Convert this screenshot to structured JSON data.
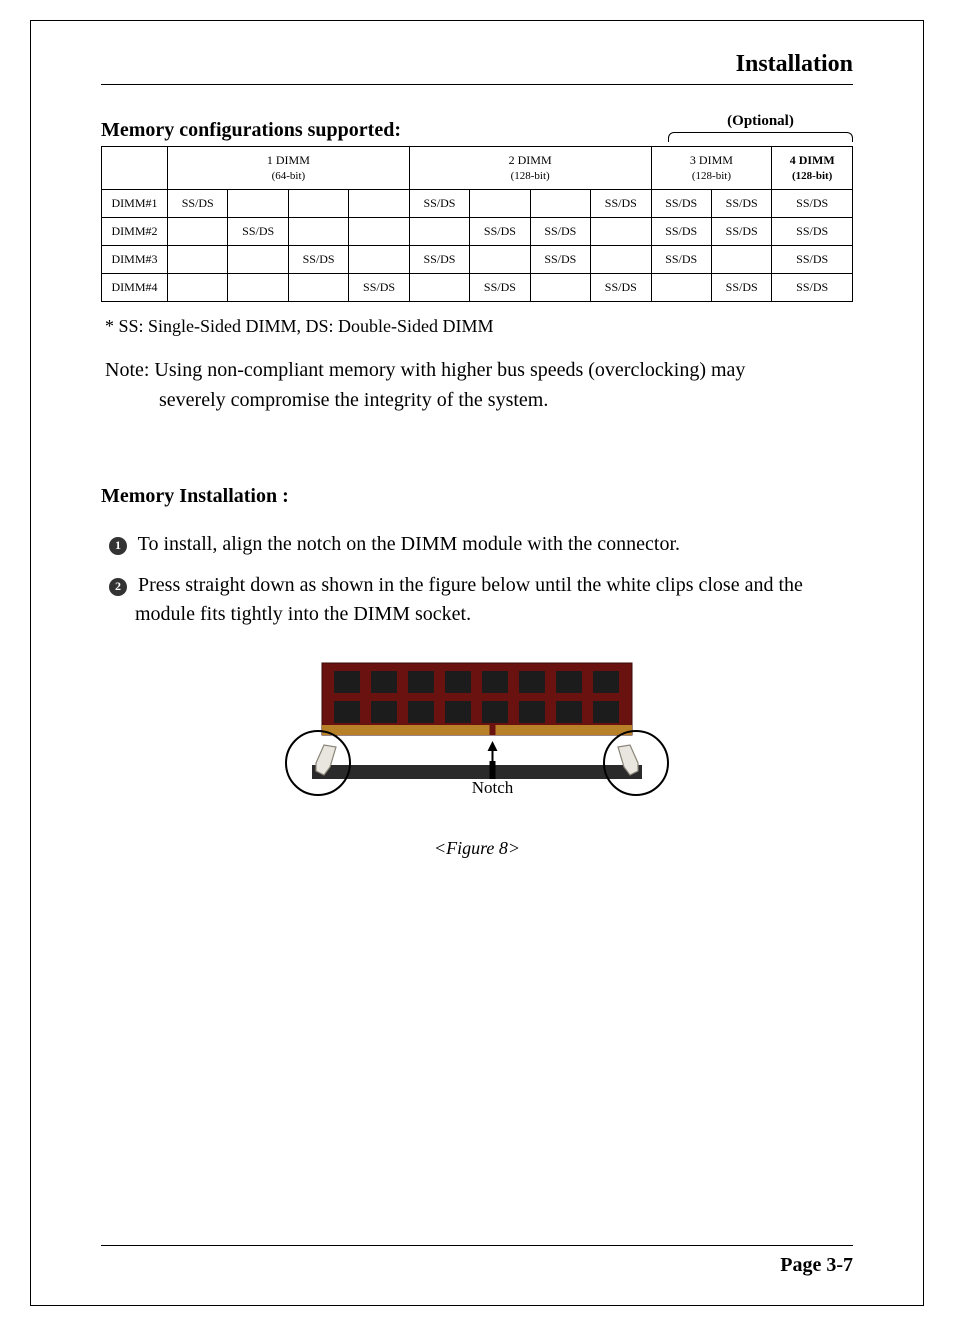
{
  "header": {
    "title": "Installation"
  },
  "subhead": "Memory configurations supported:",
  "optional": "(Optional)",
  "table": {
    "groups": [
      {
        "label_top": "1 DIMM",
        "label_sub": "(64-bit)",
        "bold": false
      },
      {
        "label_top": "2 DIMM",
        "label_sub": "(128-bit)",
        "bold": false
      },
      {
        "label_top": "3 DIMM",
        "label_sub": "(128-bit)",
        "bold": false
      },
      {
        "label_top": "4 DIMM",
        "label_sub": "(128-bit)",
        "bold": true
      }
    ],
    "rows": [
      {
        "label": "DIMM#1",
        "cells": [
          "SS/DS",
          "",
          "",
          "",
          "SS/DS",
          "",
          "",
          "SS/DS",
          "SS/DS",
          "SS/DS",
          "SS/DS"
        ]
      },
      {
        "label": "DIMM#2",
        "cells": [
          "",
          "SS/DS",
          "",
          "",
          "",
          "SS/DS",
          "SS/DS",
          "",
          "SS/DS",
          "SS/DS",
          "SS/DS"
        ]
      },
      {
        "label": "DIMM#3",
        "cells": [
          "",
          "",
          "SS/DS",
          "",
          "SS/DS",
          "",
          "SS/DS",
          "",
          "SS/DS",
          "",
          "SS/DS"
        ]
      },
      {
        "label": "DIMM#4",
        "cells": [
          "",
          "",
          "",
          "SS/DS",
          "",
          "SS/DS",
          "",
          "SS/DS",
          "",
          "SS/DS",
          "SS/DS"
        ]
      }
    ]
  },
  "footnote": "* SS: Single-Sided DIMM, DS: Double-Sided DIMM",
  "note_line1": "Note: Using non-compliant memory with higher bus speeds (overclocking) may",
  "note_line2": "severely compromise the integrity of  the system.",
  "section2": {
    "title": "Memory Installation :",
    "steps": [
      {
        "n": "1",
        "text": "To install, align the notch on the DIMM module with the connector."
      },
      {
        "n": "2",
        "text": "Press straight down as shown in the figure below until the white clips close and the module fits tightly into the DIMM socket."
      }
    ]
  },
  "figure": {
    "notch_label": "Notch",
    "caption": "<Figure 8>",
    "colors": {
      "pcb": "#6a1210",
      "pcb_dark": "#3a0a08",
      "chip": "#1c1c1c",
      "gold": "#b88128",
      "socket": "#2a2a2a",
      "clip_fill": "#e9e6df",
      "clip_stroke": "#8a8478",
      "circle_stroke": "#000000"
    }
  },
  "footer": {
    "page": "Page 3-7"
  }
}
